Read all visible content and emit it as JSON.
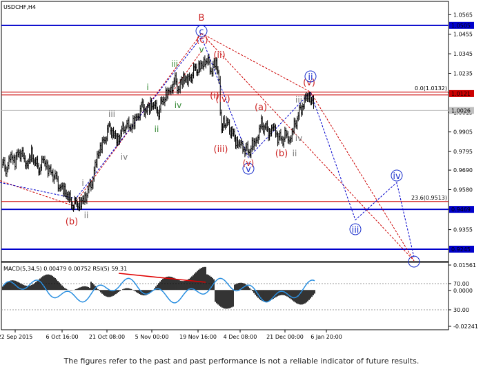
{
  "chart_data": [
    {
      "type": "candlestick",
      "symbol_label": "USDCHF,H4",
      "price_ticks": [
        "1.0565",
        "1.0455",
        "1.0345",
        "1.0235",
        "1.0125",
        "1.0015",
        "0.9905",
        "0.9795",
        "0.9690",
        "0.9580",
        "0.9470",
        "0.9355",
        "0.9245"
      ],
      "yrange": [
        0.9175,
        1.064
      ],
      "level_labels": {
        "upper_blue": "1.0505",
        "red": "1.0121",
        "current": "1.0026",
        "lower_blue": "0.9469",
        "bottom_blue": "0.9245"
      },
      "fib_labels": {
        "f0": "0.0(1.0132)",
        "f236": "23.6(0.9513)"
      },
      "wave_labels": {
        "B": "B",
        "c": "c",
        "paren_c": "(c)",
        "v_top": "v",
        "iii_top": "iii",
        "i_top": "i",
        "iv_green": "iv",
        "ii_green": "ii",
        "paren_ii": "(ii)",
        "paren_i": "(i)",
        "paren_iv": "(iv)",
        "paren_iii": "(iii)",
        "circ_v": "v",
        "paren_a": "(a)",
        "paren_b": "(b)",
        "ii_small": "ii",
        "iv_small": "iv",
        "iii_small": "iii",
        "paren_v": "(v)",
        "circ_ii": "ii",
        "iii_grey": "iii",
        "iv_grey": "iv",
        "i_grey": "i",
        "ii_grey": "ii",
        "paren_b_low": "(b)",
        "circ_iii": "iii",
        "circ_iv": "iv"
      },
      "series_note": "price bars approximate USDCHF H4 path from Sep 2015 to early Jan 2016",
      "price_path": [
        [
          0,
          0.972
        ],
        [
          6,
          0.97
        ],
        [
          12,
          0.976
        ],
        [
          18,
          0.974
        ],
        [
          24,
          0.98
        ],
        [
          30,
          0.976
        ],
        [
          36,
          0.973
        ],
        [
          42,
          0.978
        ],
        [
          48,
          0.972
        ],
        [
          54,
          0.97
        ],
        [
          60,
          0.974
        ],
        [
          66,
          0.97
        ],
        [
          72,
          0.968
        ],
        [
          78,
          0.964
        ],
        [
          84,
          0.96
        ],
        [
          90,
          0.957
        ],
        [
          96,
          0.953
        ],
        [
          102,
          0.95
        ],
        [
          108,
          0.949
        ],
        [
          114,
          0.951
        ],
        [
          120,
          0.954
        ],
        [
          126,
          0.958
        ],
        [
          132,
          0.965
        ],
        [
          138,
          0.976
        ],
        [
          144,
          0.982
        ],
        [
          150,
          0.988
        ],
        [
          156,
          0.993
        ],
        [
          162,
          0.99
        ],
        [
          168,
          0.986
        ],
        [
          174,
          0.99
        ],
        [
          180,
          0.995
        ],
        [
          186,
          0.992
        ],
        [
          192,
          0.996
        ],
        [
          198,
          1.001
        ],
        [
          204,
          1.005
        ],
        [
          210,
          1.003
        ],
        [
          216,
          1.006
        ],
        [
          222,
          1.004
        ],
        [
          228,
          1.002
        ],
        [
          234,
          1.008
        ],
        [
          240,
          1.012
        ],
        [
          246,
          1.016
        ],
        [
          252,
          1.019
        ],
        [
          258,
          1.015
        ],
        [
          264,
          1.021
        ],
        [
          270,
          1.018
        ],
        [
          276,
          1.023
        ],
        [
          282,
          1.026
        ],
        [
          288,
          1.027
        ],
        [
          294,
          1.031
        ],
        [
          300,
          1.029
        ],
        [
          306,
          1.025
        ],
        [
          312,
          1.03
        ],
        [
          316,
          1.02
        ],
        [
          318,
          1.002
        ],
        [
          320,
          0.992
        ],
        [
          324,
          0.997
        ],
        [
          330,
          0.994
        ],
        [
          336,
          0.99
        ],
        [
          342,
          0.985
        ],
        [
          348,
          0.982
        ],
        [
          354,
          0.981
        ],
        [
          360,
          0.979
        ],
        [
          366,
          0.983
        ],
        [
          372,
          0.988
        ],
        [
          378,
          0.995
        ],
        [
          384,
          0.993
        ],
        [
          390,
          0.99
        ],
        [
          396,
          0.992
        ],
        [
          402,
          0.988
        ],
        [
          408,
          0.986
        ],
        [
          414,
          0.989
        ],
        [
          420,
          0.987
        ],
        [
          426,
          0.993
        ],
        [
          432,
          1.0
        ],
        [
          438,
          1.005
        ],
        [
          444,
          1.009
        ],
        [
          450,
          1.011
        ],
        [
          456,
          1.003
        ]
      ],
      "grid": false
    },
    {
      "type": "line",
      "title": "MACD(5,34,5) 0.00479 0.00752 RSI(5) 59.31",
      "ticks": [
        "0.01561",
        "70.00",
        "0.0000",
        "30.00",
        "-0.02241"
      ],
      "x_ticks": [
        "22 Sep 2015",
        "6 Oct 16:00",
        "21 Oct 08:00",
        "5 Nov 00:00",
        "19 Nov 16:00",
        "4 Dec 08:00",
        "21 Dec 00:00",
        "6 Jan 20:00"
      ],
      "grid": false
    }
  ],
  "disclaimer": "The figures refer to the past and past performance is not a reliable indicator of future results."
}
